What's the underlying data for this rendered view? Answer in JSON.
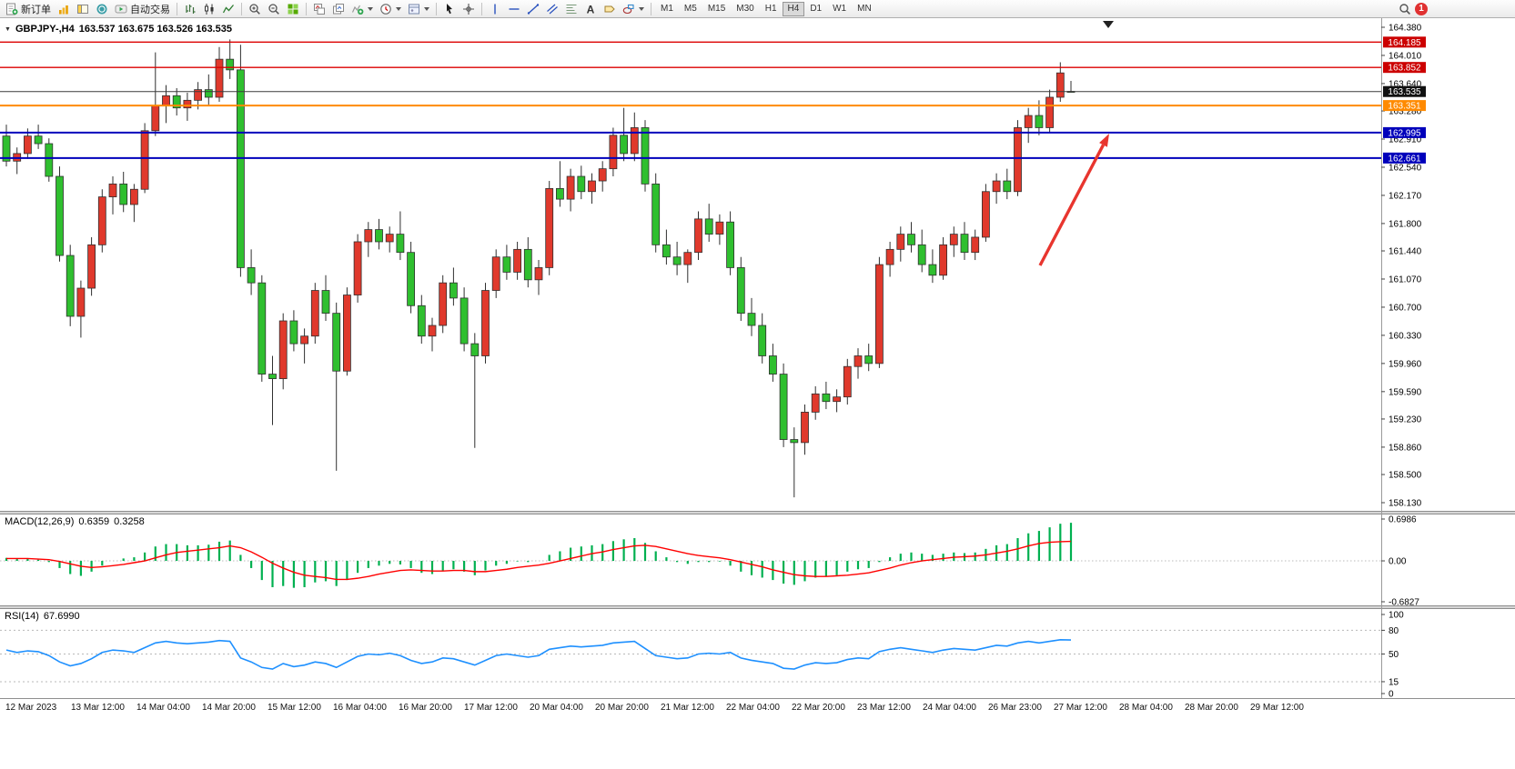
{
  "toolbar": {
    "items": [
      {
        "type": "button",
        "icon": "new-order-icon",
        "label": "新订单",
        "name": "new-order-button"
      },
      {
        "type": "button",
        "icon": "market-watch-icon",
        "name": "market-watch-button"
      },
      {
        "type": "button",
        "icon": "navigator-icon",
        "name": "navigator-button"
      },
      {
        "type": "button",
        "icon": "terminal-icon",
        "name": "terminal-button"
      },
      {
        "type": "button",
        "icon": "auto-trading-icon",
        "label": "自动交易",
        "name": "auto-trading-button"
      },
      {
        "type": "sep"
      },
      {
        "type": "button",
        "icon": "bar-chart-icon",
        "name": "bar-chart-button"
      },
      {
        "type": "button",
        "icon": "candlestick-icon",
        "name": "candlestick-button"
      },
      {
        "type": "button",
        "icon": "line-chart-icon",
        "name": "line-chart-button"
      },
      {
        "type": "sep"
      },
      {
        "type": "button",
        "icon": "zoom-in-icon",
        "name": "zoom-in-button"
      },
      {
        "type": "button",
        "icon": "zoom-out-icon",
        "name": "zoom-out-button"
      },
      {
        "type": "button",
        "icon": "tile-windows-icon",
        "name": "tile-windows-button"
      },
      {
        "type": "sep"
      },
      {
        "type": "button",
        "icon": "stack-charts-icon",
        "name": "arrange-charts-button"
      },
      {
        "type": "button",
        "icon": "cascade-charts-icon",
        "name": "cascade-charts-button"
      },
      {
        "type": "button",
        "icon": "add-indicator-icon",
        "dropdown": true,
        "name": "add-indicator-button"
      },
      {
        "type": "button",
        "icon": "period-icon",
        "dropdown": true,
        "name": "period-button"
      },
      {
        "type": "button",
        "icon": "template-icon",
        "dropdown": true,
        "name": "template-button"
      },
      {
        "type": "sep"
      },
      {
        "type": "button",
        "icon": "cursor-icon",
        "name": "cursor-button"
      },
      {
        "type": "button",
        "icon": "crosshair-icon",
        "name": "crosshair-button"
      },
      {
        "type": "sep"
      },
      {
        "type": "button",
        "icon": "vline-icon",
        "name": "vertical-line-button"
      },
      {
        "type": "button",
        "icon": "hline-icon",
        "name": "horizontal-line-button"
      },
      {
        "type": "button",
        "icon": "trendline-icon",
        "name": "trendline-button"
      },
      {
        "type": "button",
        "icon": "channel-icon",
        "name": "channel-button"
      },
      {
        "type": "button",
        "icon": "fibonacci-icon",
        "name": "fibonacci-button"
      },
      {
        "type": "button",
        "icon": "text-icon",
        "name": "text-button"
      },
      {
        "type": "button",
        "icon": "label-icon",
        "name": "text-label-button"
      },
      {
        "type": "button",
        "icon": "shapes-icon",
        "dropdown": true,
        "name": "shapes-button"
      },
      {
        "type": "sep"
      },
      {
        "type": "timeframes"
      },
      {
        "type": "spacer"
      },
      {
        "type": "button",
        "icon": "search-icon",
        "name": "search-button"
      },
      {
        "type": "badge",
        "label": "1",
        "name": "notification-badge"
      },
      {
        "type": "endpad"
      }
    ],
    "timeframes": [
      "M1",
      "M5",
      "M15",
      "M30",
      "H1",
      "H4",
      "D1",
      "W1",
      "MN"
    ],
    "active_timeframe": "H4",
    "notification_count": "1"
  },
  "chart": {
    "title_symbol": "GBPJPY-,H4",
    "title_ohlc": "163.537 163.675 163.526 163.535"
  },
  "chart_data": {
    "type": "candlestick",
    "symbol": "GBPJPY-",
    "timeframe": "H4",
    "ohlc_display": {
      "open": "163.537",
      "high": "163.675",
      "low": "163.526",
      "close": "163.535"
    },
    "colors": {
      "up": "#e0392c",
      "down": "#2fbf2f",
      "outline": "#303030",
      "arrow": "#e8352e"
    },
    "price_axis": {
      "max": 164.38,
      "min": 158.13,
      "labels": [
        "164.380",
        "164.010",
        "163.640",
        "163.280",
        "162.910",
        "162.540",
        "162.170",
        "161.800",
        "161.440",
        "161.070",
        "160.700",
        "160.330",
        "159.960",
        "159.590",
        "159.230",
        "158.860",
        "158.500",
        "158.130"
      ]
    },
    "level_lines": [
      {
        "price": 164.185,
        "color": "#dd0000",
        "width": 1.4,
        "badge": "164.185",
        "badge_color": "#cc0000"
      },
      {
        "price": 163.852,
        "color": "#dd0000",
        "width": 1.4,
        "badge": "163.852",
        "badge_color": "#cc0000"
      },
      {
        "price": 163.535,
        "color": "#3a3a3a",
        "width": 1.0,
        "badge": "163.535",
        "badge_color": "#111111"
      },
      {
        "price": 163.351,
        "color": "#ff8a00",
        "width": 2.0,
        "badge": "163.351",
        "badge_color": "#ff8a00"
      },
      {
        "price": 162.995,
        "color": "#0000bb",
        "width": 2.0,
        "badge": "162.995",
        "badge_color": "#0000bb"
      },
      {
        "price": 162.661,
        "color": "#0000bb",
        "width": 2.0,
        "badge": "162.661",
        "badge_color": "#0000bb"
      }
    ],
    "arrow": {
      "from_xy": [
        1143,
        272
      ],
      "to_xy": [
        1219,
        127
      ],
      "color": "#e8352e"
    },
    "time_labels": [
      "12 Mar 2023",
      "13 Mar 12:00",
      "14 Mar 04:00",
      "14 Mar 20:00",
      "15 Mar 12:00",
      "16 Mar 04:00",
      "16 Mar 20:00",
      "17 Mar 12:00",
      "20 Mar 04:00",
      "20 Mar 20:00",
      "21 Mar 12:00",
      "22 Mar 04:00",
      "22 Mar 20:00",
      "23 Mar 12:00",
      "24 Mar 04:00",
      "26 Mar 23:00",
      "27 Mar 12:00",
      "28 Mar 04:00",
      "28 Mar 20:00",
      "29 Mar 12:00"
    ],
    "candles": [
      [
        162.95,
        163.1,
        162.55,
        162.62
      ],
      [
        162.62,
        162.8,
        162.45,
        162.72
      ],
      [
        162.72,
        163.05,
        162.65,
        162.95
      ],
      [
        162.95,
        163.1,
        162.78,
        162.85
      ],
      [
        162.85,
        162.92,
        162.35,
        162.42
      ],
      [
        162.42,
        162.55,
        161.3,
        161.38
      ],
      [
        161.38,
        161.52,
        160.45,
        160.58
      ],
      [
        160.58,
        161.05,
        160.3,
        160.95
      ],
      [
        160.95,
        161.62,
        160.85,
        161.52
      ],
      [
        161.52,
        162.25,
        161.42,
        162.15
      ],
      [
        162.15,
        162.42,
        161.92,
        162.32
      ],
      [
        162.32,
        162.48,
        161.95,
        162.05
      ],
      [
        162.05,
        162.32,
        161.82,
        162.25
      ],
      [
        162.25,
        163.12,
        162.2,
        163.02
      ],
      [
        163.02,
        164.05,
        162.95,
        163.35
      ],
      [
        163.35,
        163.62,
        163.12,
        163.48
      ],
      [
        163.48,
        163.58,
        163.22,
        163.32
      ],
      [
        163.32,
        163.52,
        163.15,
        163.42
      ],
      [
        163.42,
        163.66,
        163.3,
        163.56
      ],
      [
        163.56,
        163.76,
        163.36,
        163.46
      ],
      [
        163.46,
        164.12,
        163.4,
        163.96
      ],
      [
        163.96,
        164.22,
        163.7,
        163.82
      ],
      [
        163.82,
        164.15,
        161.1,
        161.22
      ],
      [
        161.22,
        161.46,
        160.86,
        161.02
      ],
      [
        161.02,
        161.12,
        159.72,
        159.82
      ],
      [
        159.82,
        160.06,
        159.15,
        159.76
      ],
      [
        159.76,
        160.62,
        159.62,
        160.52
      ],
      [
        160.52,
        160.66,
        160.12,
        160.22
      ],
      [
        160.22,
        160.42,
        159.96,
        160.32
      ],
      [
        160.32,
        161.02,
        160.22,
        160.92
      ],
      [
        160.92,
        161.12,
        160.52,
        160.62
      ],
      [
        160.62,
        160.76,
        158.55,
        159.86
      ],
      [
        159.86,
        160.96,
        159.8,
        160.86
      ],
      [
        160.86,
        161.66,
        160.76,
        161.56
      ],
      [
        161.56,
        161.82,
        161.36,
        161.72
      ],
      [
        161.72,
        161.86,
        161.46,
        161.56
      ],
      [
        161.56,
        161.76,
        161.42,
        161.66
      ],
      [
        161.66,
        161.96,
        161.32,
        161.42
      ],
      [
        161.42,
        161.56,
        160.62,
        160.72
      ],
      [
        160.72,
        160.86,
        160.22,
        160.32
      ],
      [
        160.32,
        160.56,
        160.12,
        160.46
      ],
      [
        160.46,
        161.12,
        160.36,
        161.02
      ],
      [
        161.02,
        161.22,
        160.72,
        160.82
      ],
      [
        160.82,
        160.96,
        160.12,
        160.22
      ],
      [
        160.22,
        160.36,
        158.85,
        160.06
      ],
      [
        160.06,
        161.02,
        159.96,
        160.92
      ],
      [
        160.92,
        161.46,
        160.82,
        161.36
      ],
      [
        161.36,
        161.52,
        161.06,
        161.16
      ],
      [
        161.16,
        161.56,
        161.06,
        161.46
      ],
      [
        161.46,
        161.62,
        160.96,
        161.06
      ],
      [
        161.06,
        161.32,
        160.86,
        161.22
      ],
      [
        161.22,
        162.36,
        161.12,
        162.26
      ],
      [
        162.26,
        162.62,
        162.02,
        162.12
      ],
      [
        162.12,
        162.52,
        161.96,
        162.42
      ],
      [
        162.42,
        162.56,
        162.12,
        162.22
      ],
      [
        162.22,
        162.46,
        162.06,
        162.36
      ],
      [
        162.36,
        162.62,
        162.22,
        162.52
      ],
      [
        162.52,
        163.06,
        162.42,
        162.96
      ],
      [
        162.96,
        163.32,
        162.62,
        162.72
      ],
      [
        162.72,
        163.26,
        162.62,
        163.06
      ],
      [
        163.06,
        163.16,
        162.22,
        162.32
      ],
      [
        162.32,
        162.46,
        161.42,
        161.52
      ],
      [
        161.52,
        161.72,
        161.26,
        161.36
      ],
      [
        161.36,
        161.56,
        161.12,
        161.26
      ],
      [
        161.26,
        161.46,
        161.02,
        161.42
      ],
      [
        161.42,
        161.96,
        161.32,
        161.86
      ],
      [
        161.86,
        162.06,
        161.56,
        161.66
      ],
      [
        161.66,
        161.92,
        161.52,
        161.82
      ],
      [
        161.82,
        161.96,
        161.12,
        161.22
      ],
      [
        161.22,
        161.36,
        160.52,
        160.62
      ],
      [
        160.62,
        160.82,
        160.32,
        160.46
      ],
      [
        160.46,
        160.62,
        159.96,
        160.06
      ],
      [
        160.06,
        160.22,
        159.72,
        159.82
      ],
      [
        159.82,
        159.96,
        158.86,
        158.96
      ],
      [
        158.96,
        159.12,
        158.2,
        158.92
      ],
      [
        158.92,
        159.42,
        158.76,
        159.32
      ],
      [
        159.32,
        159.66,
        159.22,
        159.56
      ],
      [
        159.56,
        159.72,
        159.36,
        159.46
      ],
      [
        159.46,
        159.62,
        159.32,
        159.52
      ],
      [
        159.52,
        160.02,
        159.42,
        159.92
      ],
      [
        159.92,
        160.16,
        159.76,
        160.06
      ],
      [
        160.06,
        160.22,
        159.86,
        159.96
      ],
      [
        159.96,
        161.36,
        159.9,
        161.26
      ],
      [
        161.26,
        161.56,
        161.1,
        161.46
      ],
      [
        161.46,
        161.76,
        161.3,
        161.66
      ],
      [
        161.66,
        161.82,
        161.42,
        161.52
      ],
      [
        161.52,
        161.72,
        161.16,
        161.26
      ],
      [
        161.26,
        161.46,
        161.02,
        161.12
      ],
      [
        161.12,
        161.62,
        161.06,
        161.52
      ],
      [
        161.52,
        161.76,
        161.36,
        161.66
      ],
      [
        161.66,
        161.82,
        161.32,
        161.42
      ],
      [
        161.42,
        161.72,
        161.32,
        161.62
      ],
      [
        161.62,
        162.32,
        161.56,
        162.22
      ],
      [
        162.22,
        162.46,
        162.06,
        162.36
      ],
      [
        162.36,
        162.52,
        162.12,
        162.22
      ],
      [
        162.22,
        163.16,
        162.16,
        163.06
      ],
      [
        163.06,
        163.32,
        162.86,
        163.22
      ],
      [
        163.22,
        163.42,
        162.96,
        163.06
      ],
      [
        163.06,
        163.56,
        163.0,
        163.46
      ],
      [
        163.46,
        163.92,
        163.4,
        163.78
      ],
      [
        163.537,
        163.675,
        163.526,
        163.535
      ]
    ],
    "macd": {
      "name": "MACD(12,26,9)",
      "value_macd": "0.6359",
      "value_signal": "0.3258",
      "axis_labels": [
        "0.6986",
        "0.00",
        "-0.6827"
      ],
      "max": 0.6986,
      "min": -0.6827,
      "hist_color": "#00b050",
      "signal_color": "#ff0000",
      "hist": [
        0.05,
        0.03,
        0.04,
        0.02,
        -0.02,
        -0.12,
        -0.22,
        -0.25,
        -0.18,
        -0.08,
        0.0,
        0.04,
        0.06,
        0.14,
        0.24,
        0.28,
        0.28,
        0.26,
        0.26,
        0.27,
        0.32,
        0.34,
        0.1,
        -0.12,
        -0.32,
        -0.44,
        -0.42,
        -0.45,
        -0.44,
        -0.36,
        -0.34,
        -0.42,
        -0.32,
        -0.2,
        -0.12,
        -0.08,
        -0.05,
        -0.06,
        -0.12,
        -0.2,
        -0.22,
        -0.16,
        -0.14,
        -0.18,
        -0.24,
        -0.16,
        -0.08,
        -0.05,
        -0.01,
        -0.02,
        0.0,
        0.1,
        0.16,
        0.22,
        0.24,
        0.26,
        0.28,
        0.33,
        0.36,
        0.38,
        0.3,
        0.16,
        0.06,
        -0.02,
        -0.05,
        -0.02,
        -0.02,
        -0.01,
        -0.08,
        -0.18,
        -0.24,
        -0.28,
        -0.32,
        -0.38,
        -0.4,
        -0.34,
        -0.28,
        -0.26,
        -0.24,
        -0.18,
        -0.14,
        -0.12,
        -0.02,
        0.06,
        0.12,
        0.14,
        0.12,
        0.1,
        0.12,
        0.14,
        0.13,
        0.14,
        0.2,
        0.26,
        0.28,
        0.38,
        0.46,
        0.5,
        0.56,
        0.62,
        0.6359
      ],
      "signal": [
        0.04,
        0.04,
        0.04,
        0.03,
        0.02,
        -0.01,
        -0.05,
        -0.09,
        -0.11,
        -0.1,
        -0.08,
        -0.06,
        -0.03,
        0.0,
        0.05,
        0.1,
        0.14,
        0.16,
        0.18,
        0.2,
        0.22,
        0.25,
        0.22,
        0.15,
        0.06,
        -0.04,
        -0.12,
        -0.19,
        -0.24,
        -0.26,
        -0.28,
        -0.31,
        -0.31,
        -0.29,
        -0.26,
        -0.22,
        -0.19,
        -0.16,
        -0.15,
        -0.16,
        -0.17,
        -0.17,
        -0.16,
        -0.16,
        -0.18,
        -0.18,
        -0.16,
        -0.14,
        -0.11,
        -0.09,
        -0.07,
        -0.04,
        0.0,
        0.04,
        0.08,
        0.12,
        0.15,
        0.19,
        0.22,
        0.25,
        0.26,
        0.24,
        0.2,
        0.16,
        0.12,
        0.09,
        0.07,
        0.05,
        0.02,
        -0.02,
        -0.06,
        -0.1,
        -0.15,
        -0.19,
        -0.23,
        -0.25,
        -0.26,
        -0.26,
        -0.25,
        -0.24,
        -0.22,
        -0.2,
        -0.16,
        -0.12,
        -0.07,
        -0.03,
        0.0,
        0.02,
        0.04,
        0.06,
        0.07,
        0.08,
        0.1,
        0.13,
        0.16,
        0.2,
        0.25,
        0.29,
        0.31,
        0.32,
        0.3258
      ]
    },
    "rsi": {
      "name": "RSI(14)",
      "value": "67.6990",
      "color": "#1e90ff",
      "axis_labels": [
        "100",
        "80",
        "50",
        "15",
        "0"
      ],
      "axis_values": [
        100,
        80,
        50,
        15,
        0
      ],
      "levels": [
        80,
        50,
        15
      ],
      "values": [
        55,
        52,
        54,
        53,
        48,
        40,
        35,
        38,
        44,
        52,
        55,
        54,
        52,
        58,
        64,
        66,
        64,
        63,
        64,
        65,
        67,
        66,
        45,
        40,
        33,
        31,
        38,
        34,
        36,
        40,
        38,
        33,
        40,
        47,
        50,
        49,
        51,
        48,
        42,
        38,
        40,
        45,
        44,
        40,
        36,
        42,
        48,
        50,
        48,
        46,
        48,
        56,
        58,
        60,
        59,
        60,
        61,
        64,
        65,
        66,
        57,
        48,
        46,
        44,
        45,
        50,
        51,
        50,
        52,
        45,
        42,
        40,
        38,
        32,
        31,
        36,
        39,
        38,
        39,
        43,
        45,
        44,
        53,
        56,
        58,
        56,
        54,
        52,
        55,
        57,
        56,
        55,
        58,
        61,
        60,
        64,
        66,
        64,
        66,
        68,
        67.7
      ]
    }
  }
}
